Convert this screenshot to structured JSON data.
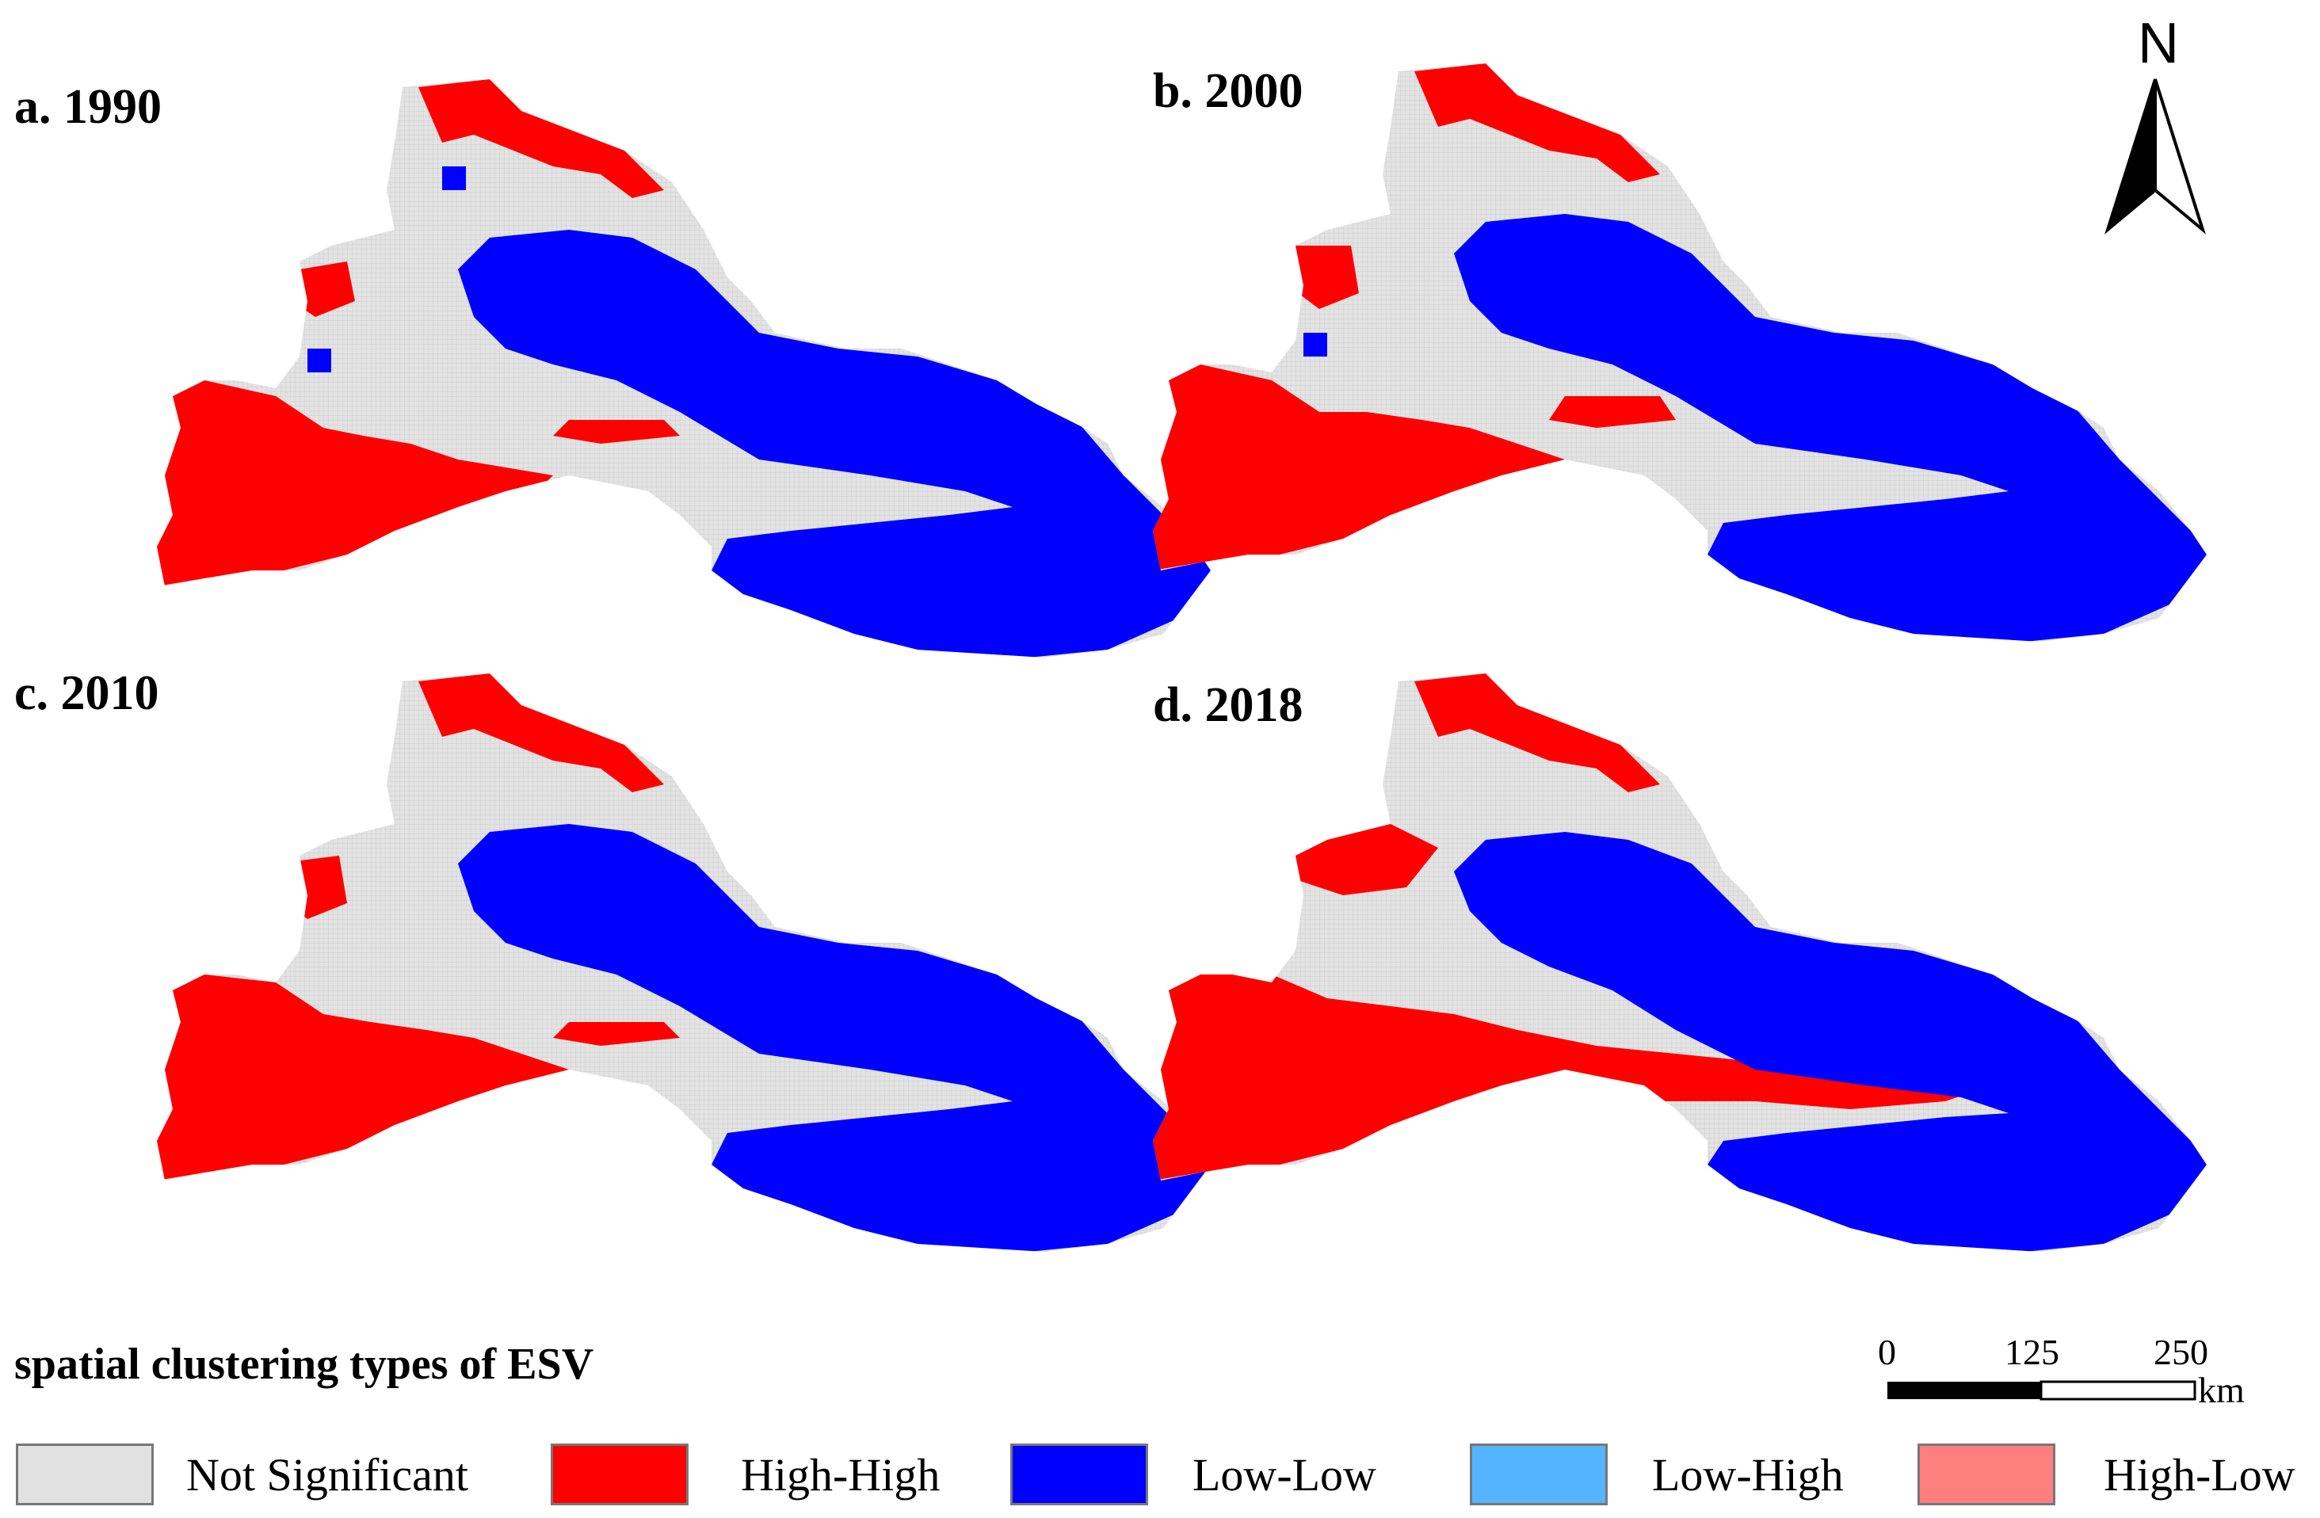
{
  "panels": [
    {
      "label": "a. 1990"
    },
    {
      "label": "b. 2000"
    },
    {
      "label": "c. 2010"
    },
    {
      "label": "d. 2018"
    }
  ],
  "north_arrow": {
    "letter": "N"
  },
  "legend": {
    "title": "spatial clustering types of ESV",
    "items": [
      {
        "label": "Not Significant",
        "color": "#e1e1e1"
      },
      {
        "label": "High-High",
        "color": "#ff0000"
      },
      {
        "label": "Low-Low",
        "color": "#0000ff"
      },
      {
        "label": "Low-High",
        "color": "#55b4ff"
      },
      {
        "label": "High-Low",
        "color": "#ff7f7f"
      }
    ]
  },
  "scale_bar": {
    "ticks": [
      "0",
      "125",
      "250"
    ],
    "unit": "km"
  }
}
